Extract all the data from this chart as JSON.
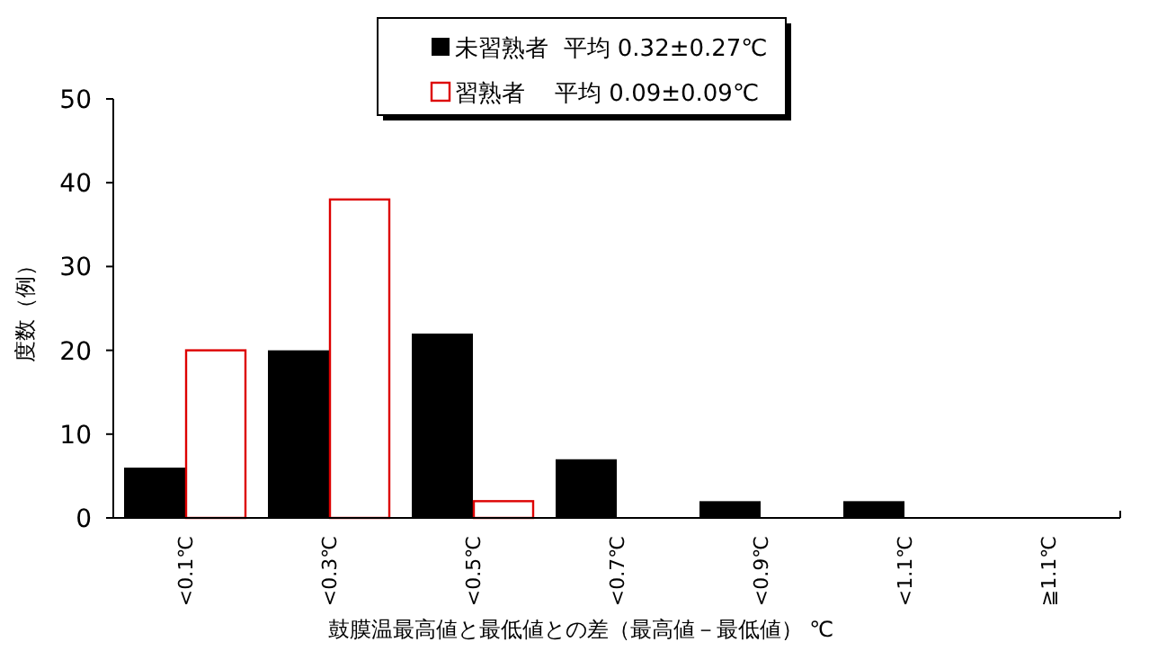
{
  "chart_data": {
    "type": "bar",
    "xlabel": "鼓膜温最高値と最低値との差（最高値－最低値） ℃",
    "ylabel": "度数（例）",
    "categories": [
      "<0.1℃",
      "<0.3℃",
      "<0.5℃",
      "<0.7℃",
      "<0.9℃",
      "<1.1℃",
      "≧1.1℃"
    ],
    "series": [
      {
        "name": "未習熟者  平均 0.32±0.27℃",
        "color": "#000000",
        "values": [
          6,
          20,
          22,
          7,
          2,
          2,
          0
        ]
      },
      {
        "name": "習熟者    平均 0.09±0.09℃",
        "color": "#dd0000",
        "values": [
          20,
          38,
          2,
          0,
          0,
          0,
          0
        ]
      }
    ],
    "ylim": [
      0,
      50
    ],
    "yticks": [
      0,
      10,
      20,
      30,
      40,
      50
    ],
    "legend": "top",
    "grid": false
  }
}
